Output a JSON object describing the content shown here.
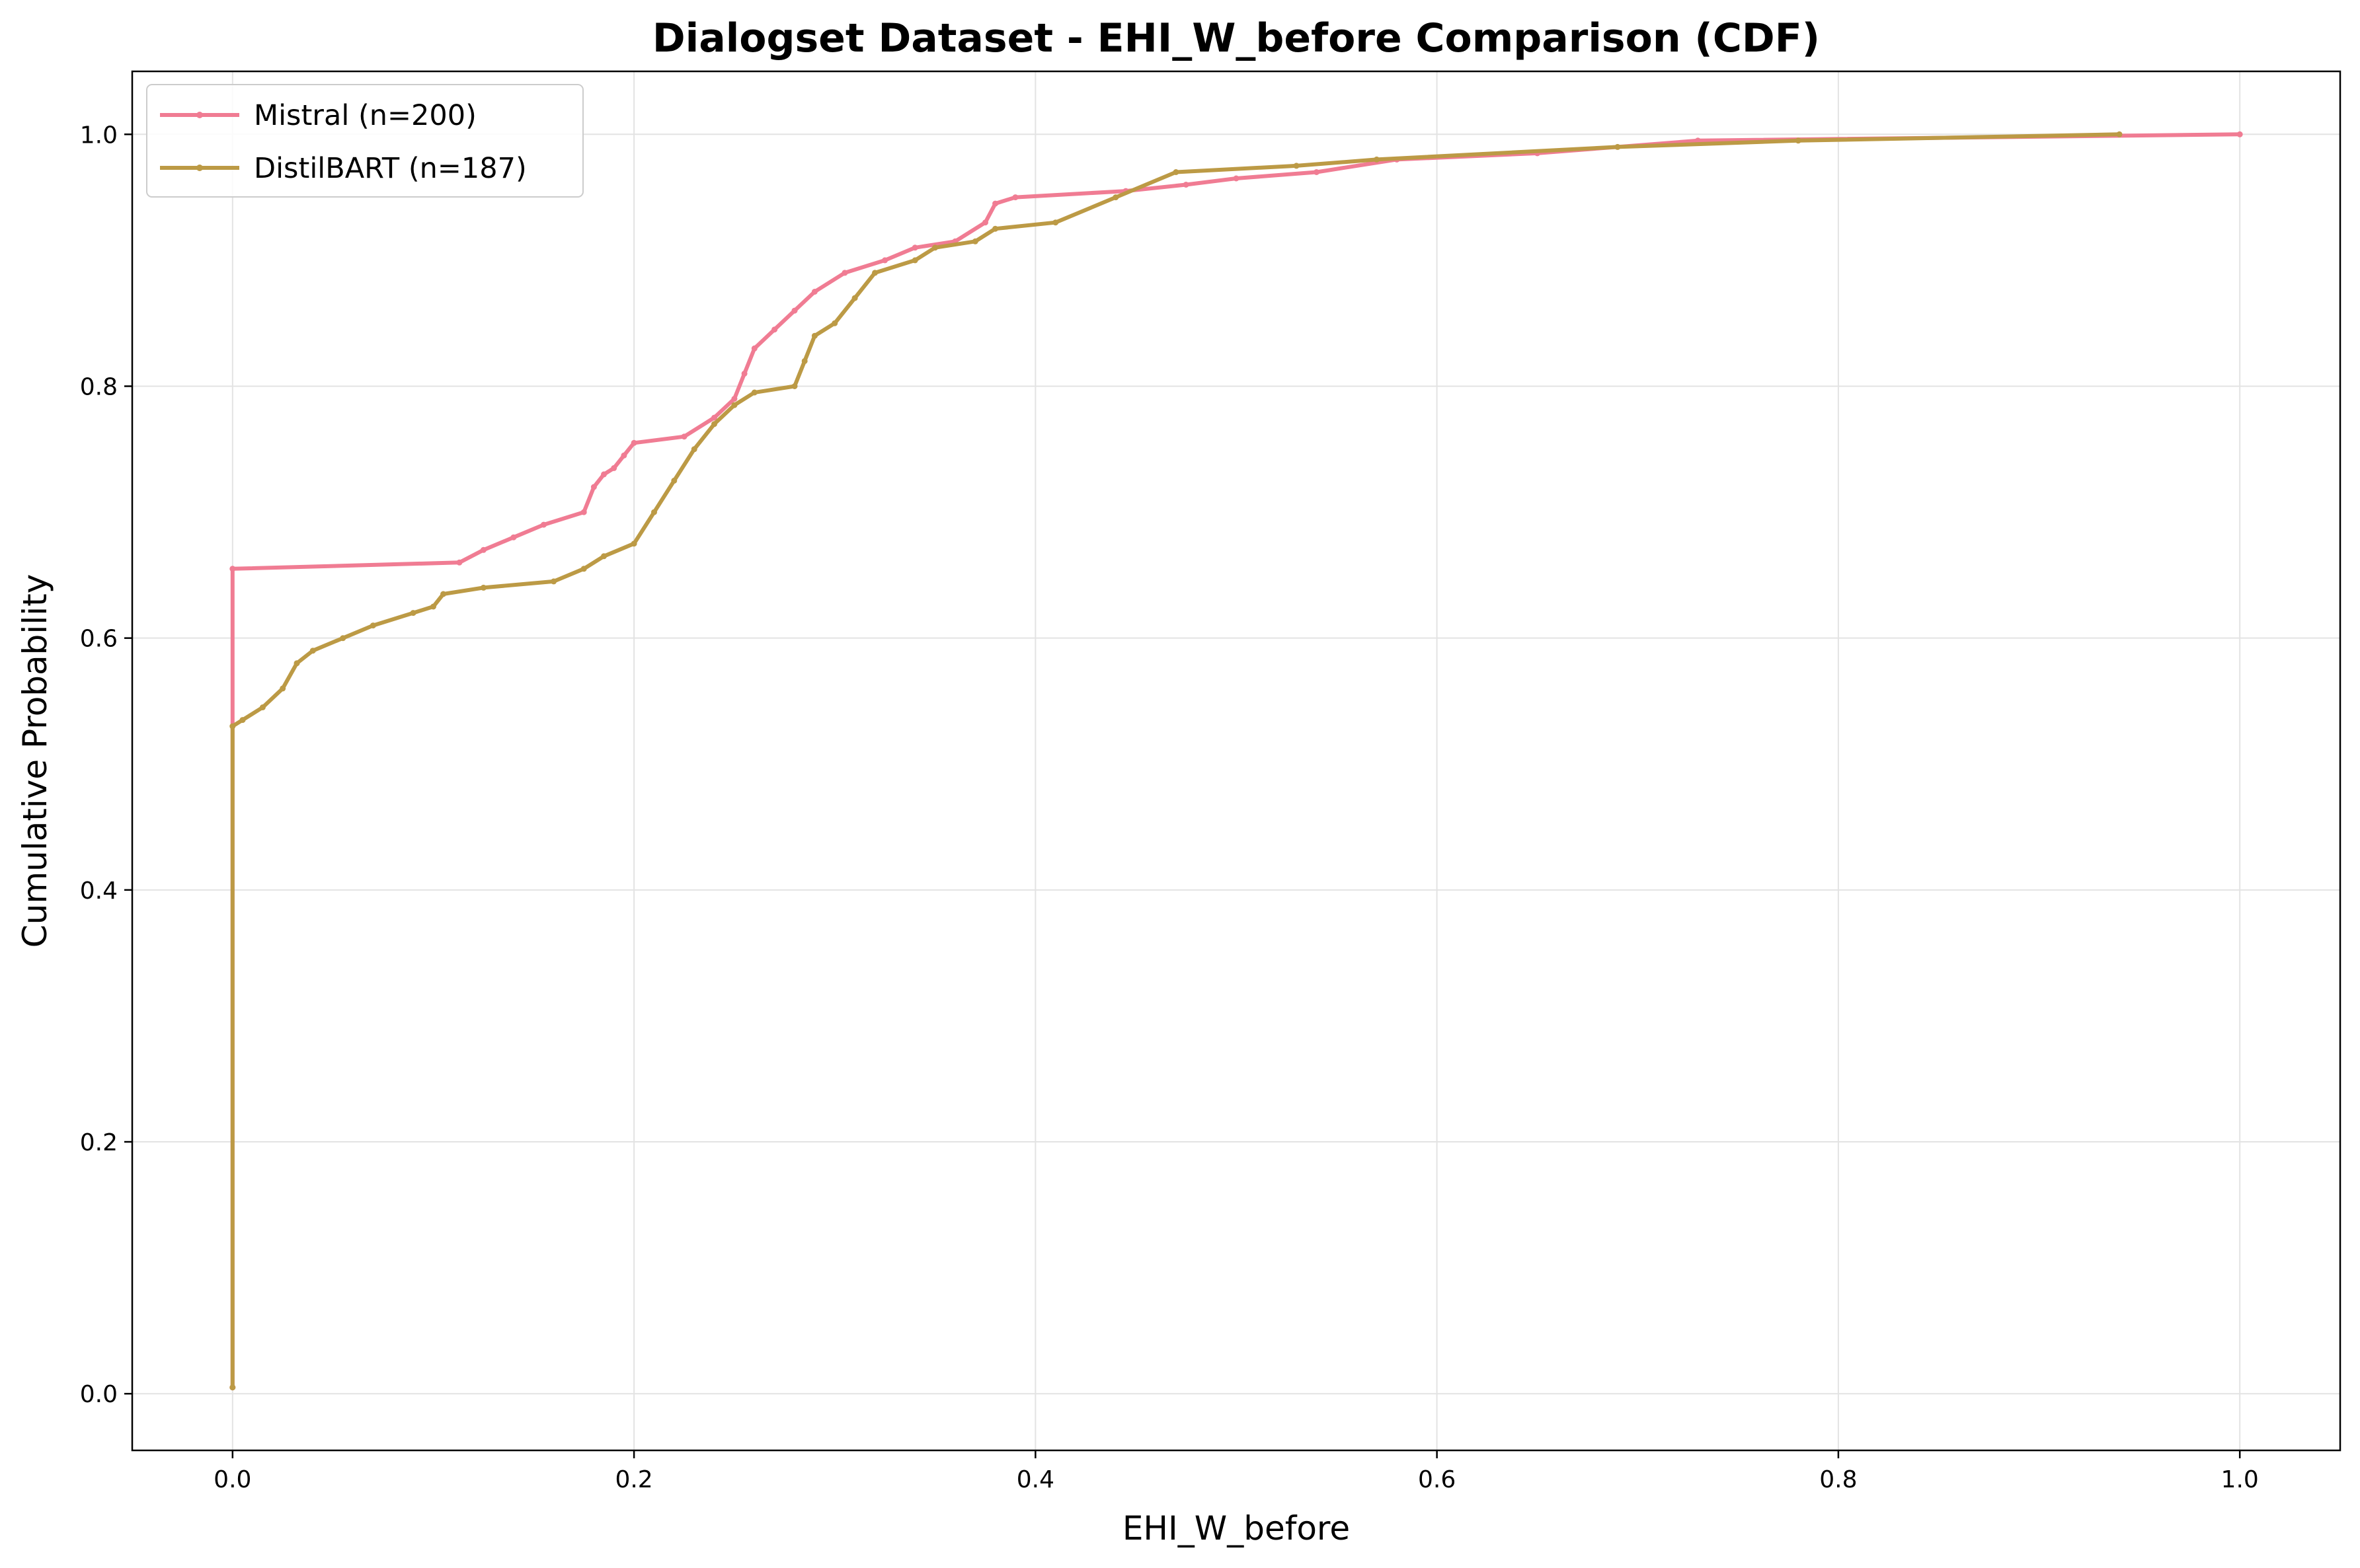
{
  "chart_data": {
    "type": "line",
    "title": "Dialogset Dataset - EHI_W_before Comparison (CDF)",
    "xlabel": "EHI_W_before",
    "ylabel": "Cumulative Probability",
    "xlim": [
      -0.05,
      1.05
    ],
    "ylim": [
      -0.045,
      1.05
    ],
    "xticks": [
      0.0,
      0.2,
      0.4,
      0.6,
      0.8,
      1.0
    ],
    "xtick_labels": [
      "0.0",
      "0.2",
      "0.4",
      "0.6",
      "0.8",
      "1.0"
    ],
    "yticks": [
      0.0,
      0.2,
      0.4,
      0.6,
      0.8,
      1.0
    ],
    "ytick_labels": [
      "0.0",
      "0.2",
      "0.4",
      "0.6",
      "0.8",
      "1.0"
    ],
    "grid": true,
    "legend_position": "top-left",
    "series": [
      {
        "name": "Mistral (n=200)",
        "color": "#f07c93",
        "x": [
          0.0,
          0.0,
          0.113,
          0.125,
          0.14,
          0.155,
          0.175,
          0.18,
          0.185,
          0.19,
          0.195,
          0.2,
          0.225,
          0.24,
          0.25,
          0.255,
          0.26,
          0.27,
          0.28,
          0.29,
          0.305,
          0.325,
          0.34,
          0.36,
          0.375,
          0.38,
          0.39,
          0.445,
          0.475,
          0.5,
          0.54,
          0.58,
          0.65,
          0.73,
          1.0
        ],
        "y": [
          0.005,
          0.655,
          0.66,
          0.67,
          0.68,
          0.69,
          0.7,
          0.72,
          0.73,
          0.735,
          0.745,
          0.755,
          0.76,
          0.775,
          0.79,
          0.81,
          0.83,
          0.845,
          0.86,
          0.875,
          0.89,
          0.9,
          0.91,
          0.915,
          0.93,
          0.945,
          0.95,
          0.955,
          0.96,
          0.965,
          0.97,
          0.98,
          0.985,
          0.995,
          1.0
        ]
      },
      {
        "name": "DistilBART (n=187)",
        "color": "#bc9a45",
        "x": [
          0.0,
          0.0,
          0.005,
          0.015,
          0.025,
          0.032,
          0.04,
          0.055,
          0.07,
          0.09,
          0.1,
          0.105,
          0.125,
          0.16,
          0.175,
          0.185,
          0.2,
          0.21,
          0.22,
          0.23,
          0.24,
          0.25,
          0.26,
          0.28,
          0.285,
          0.29,
          0.3,
          0.31,
          0.32,
          0.34,
          0.35,
          0.37,
          0.38,
          0.41,
          0.44,
          0.47,
          0.53,
          0.57,
          0.69,
          0.78,
          0.94
        ],
        "y": [
          0.005,
          0.53,
          0.535,
          0.545,
          0.56,
          0.58,
          0.59,
          0.6,
          0.61,
          0.62,
          0.625,
          0.635,
          0.64,
          0.645,
          0.655,
          0.665,
          0.675,
          0.7,
          0.725,
          0.75,
          0.77,
          0.785,
          0.795,
          0.8,
          0.82,
          0.84,
          0.85,
          0.87,
          0.89,
          0.9,
          0.91,
          0.915,
          0.925,
          0.93,
          0.95,
          0.97,
          0.975,
          0.98,
          0.99,
          0.995,
          1.0
        ]
      }
    ]
  }
}
